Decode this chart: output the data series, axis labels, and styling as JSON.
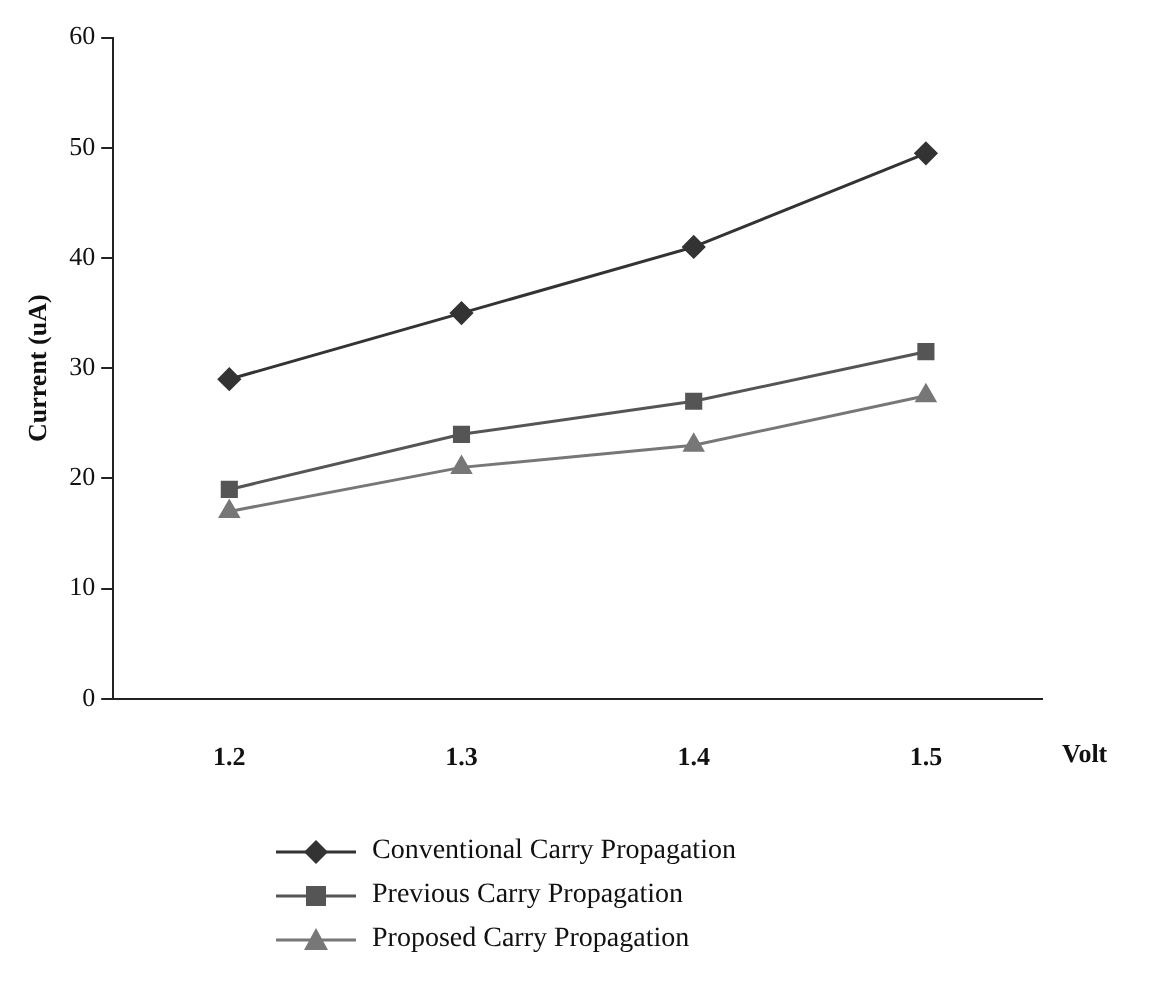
{
  "chart_data": {
    "type": "line",
    "xlabel": "Volt",
    "ylabel": "Current (uA)",
    "categories": [
      "1.2",
      "1.3",
      "1.4",
      "1.5"
    ],
    "ylim": [
      0,
      60
    ],
    "yticks": [
      0,
      10,
      20,
      30,
      40,
      50,
      60
    ],
    "grid": false,
    "legend": "bottom",
    "line_style": "solid",
    "series": [
      {
        "name": "Conventional Carry Propagation",
        "color": "#333333",
        "marker": "diamond",
        "values": [
          29,
          35,
          41,
          49.5
        ]
      },
      {
        "name": "Previous Carry Propagation",
        "color": "#555555",
        "marker": "square",
        "values": [
          19,
          24,
          27,
          31.5
        ]
      },
      {
        "name": "Proposed Carry Propagation",
        "color": "#777777",
        "marker": "triangle",
        "values": [
          17,
          21,
          23,
          27.5
        ]
      }
    ]
  }
}
